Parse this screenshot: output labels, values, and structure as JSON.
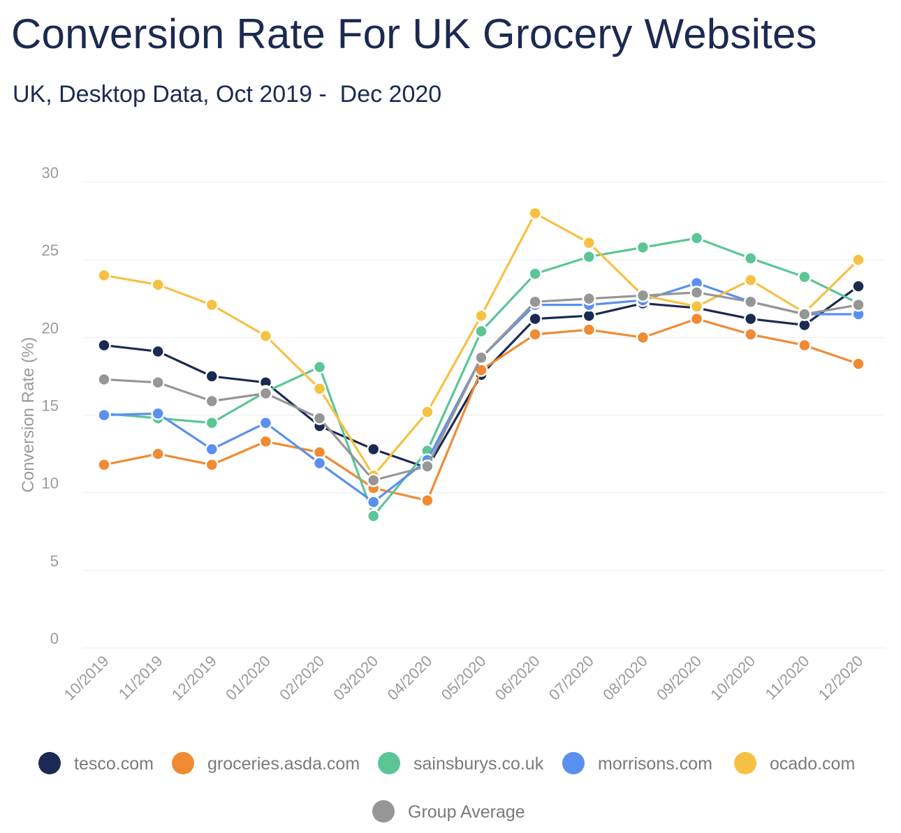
{
  "chart_data": {
    "type": "line",
    "title": "Conversion Rate For UK Grocery Websites",
    "subtitle": "UK, Desktop Data, Oct 2019 -  Dec 2020",
    "xlabel": "",
    "ylabel": "Conversion Rate (%)",
    "ylim": [
      0,
      30
    ],
    "yticks": [
      0,
      5,
      10,
      15,
      20,
      25,
      30
    ],
    "grid": true,
    "legend_position": "bottom",
    "categories": [
      "10/2019",
      "11/2019",
      "12/2019",
      "01/2020",
      "02/2020",
      "03/2020",
      "04/2020",
      "05/2020",
      "06/2020",
      "07/2020",
      "08/2020",
      "09/2020",
      "10/2020",
      "11/2020",
      "12/2020"
    ],
    "series": [
      {
        "name": "tesco.com",
        "color": "#1b2a52",
        "values": [
          19.5,
          19.1,
          17.5,
          17.1,
          14.3,
          12.8,
          11.6,
          17.6,
          21.2,
          21.4,
          22.2,
          21.9,
          21.2,
          20.8,
          23.3
        ]
      },
      {
        "name": "groceries.asda.com",
        "color": "#f08a33",
        "values": [
          11.8,
          12.5,
          11.8,
          13.3,
          12.6,
          10.3,
          9.5,
          17.9,
          20.2,
          20.5,
          20.0,
          21.2,
          20.2,
          19.5,
          18.3
        ]
      },
      {
        "name": "sainsburys.co.uk",
        "color": "#5bc596",
        "values": [
          15.1,
          14.8,
          14.5,
          16.5,
          18.1,
          8.5,
          12.7,
          20.4,
          24.1,
          25.2,
          25.8,
          26.4,
          25.1,
          23.9,
          22.2
        ]
      },
      {
        "name": "morrisons.com",
        "color": "#5b8ff0",
        "values": [
          15.0,
          15.1,
          12.8,
          14.5,
          11.9,
          9.4,
          12.1,
          18.7,
          22.1,
          22.1,
          22.4,
          23.5,
          22.3,
          21.5,
          21.5
        ]
      },
      {
        "name": "ocado.com",
        "color": "#f6c143",
        "values": [
          24.0,
          23.4,
          22.1,
          20.1,
          16.7,
          11.1,
          15.2,
          21.4,
          28.0,
          26.1,
          22.7,
          22.0,
          23.7,
          21.6,
          25.0
        ]
      },
      {
        "name": "Group Average",
        "color": "#969696",
        "values": [
          17.3,
          17.1,
          15.9,
          16.4,
          14.8,
          10.8,
          11.7,
          18.7,
          22.3,
          22.5,
          22.7,
          22.9,
          22.3,
          21.5,
          22.1
        ]
      }
    ]
  }
}
